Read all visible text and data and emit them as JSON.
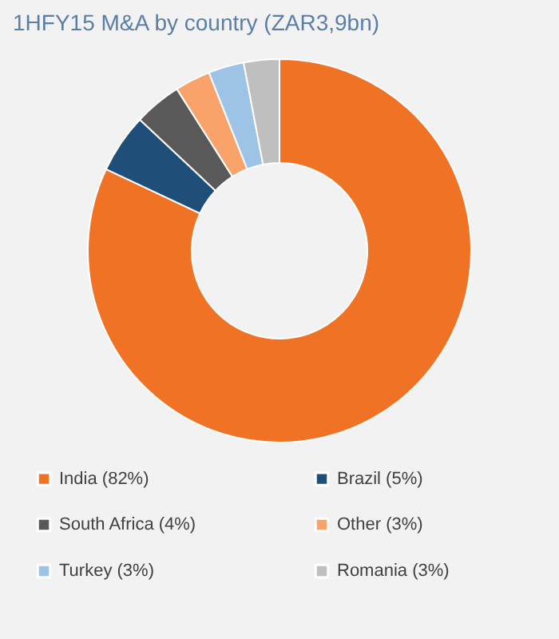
{
  "chart_data": {
    "type": "donut",
    "title": "1HFY15 M&A by country (ZAR3,9bn)",
    "categories": [
      "India (82%)",
      "Brazil (5%)",
      "South Africa (4%)",
      "Other (3%)",
      "Turkey (3%)",
      "Romania (3%)"
    ],
    "values": [
      82,
      5,
      4,
      3,
      3,
      3
    ],
    "colors": [
      "#f07224",
      "#1f4e79",
      "#595959",
      "#f9a36a",
      "#9dc3e6",
      "#bfbfbf"
    ],
    "legend": "bottom"
  }
}
